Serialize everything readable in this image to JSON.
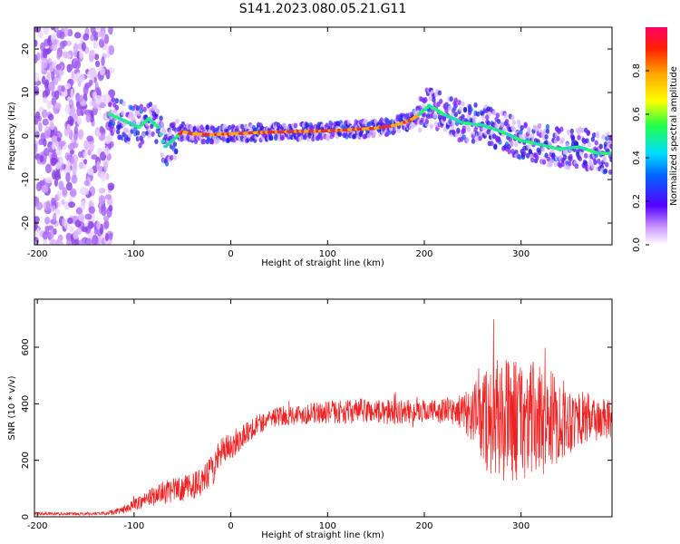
{
  "title": "S141.2023.080.05.21.G11",
  "colors": {
    "ridge": "#e03030",
    "snr_line": "#ee2222",
    "axis": "#000000"
  },
  "chart_data": [
    {
      "type": "heatmap",
      "xlabel": "Height of straight line (km)",
      "ylabel": "Frequency (Hz)",
      "xlim": [
        -203,
        394
      ],
      "ylim": [
        -25,
        25
      ],
      "xticks": [
        -200,
        -100,
        0,
        100,
        200,
        300
      ],
      "yticks": [
        -20,
        -10,
        0,
        10,
        20
      ],
      "colorbar": {
        "label": "Normalized spectral amplitude",
        "range": [
          0,
          1
        ],
        "ticks": [
          0.0,
          0.2,
          0.4,
          0.6,
          0.8
        ]
      },
      "ridge": {
        "x": [
          -125,
          -110,
          -95,
          -85,
          -75,
          -68,
          -60,
          -50,
          -40,
          -20,
          0,
          30,
          60,
          90,
          120,
          150,
          170,
          185,
          195,
          205,
          220,
          240,
          260,
          280,
          300,
          320,
          340,
          360,
          380,
          394
        ],
        "y": [
          5,
          3.5,
          2,
          4,
          2,
          -2.5,
          -1,
          1,
          0.5,
          0.3,
          0.5,
          0.8,
          1.0,
          1.1,
          1.4,
          1.8,
          2.5,
          3.5,
          5,
          7,
          5,
          3,
          2.5,
          1,
          -1,
          -2,
          -3,
          -2.5,
          -4,
          -4
        ]
      }
    },
    {
      "type": "line",
      "xlabel": "Height of straight line (km)",
      "ylabel": "SNR (10 * v/v)",
      "xlim": [
        -203,
        394
      ],
      "ylim": [
        0,
        770
      ],
      "xticks": [
        -200,
        -100,
        0,
        100,
        200,
        300
      ],
      "yticks": [
        0,
        200,
        400,
        600
      ],
      "envelope": {
        "x": [
          -203,
          -160,
          -130,
          -110,
          -90,
          -70,
          -50,
          -30,
          -20,
          -10,
          0,
          20,
          40,
          60,
          80,
          100,
          120,
          140,
          160,
          180,
          200,
          220,
          240,
          255,
          265,
          280,
          300,
          320,
          340,
          360,
          380,
          394
        ],
        "mean": [
          12,
          10,
          12,
          25,
          60,
          85,
          100,
          120,
          160,
          225,
          250,
          310,
          350,
          360,
          365,
          370,
          372,
          375,
          370,
          372,
          375,
          375,
          372,
          360,
          350,
          345,
          345,
          340,
          345,
          350,
          345,
          340
        ],
        "noise": [
          6,
          5,
          6,
          14,
          28,
          40,
          45,
          50,
          60,
          55,
          50,
          40,
          35,
          35,
          38,
          40,
          42,
          45,
          45,
          42,
          40,
          45,
          60,
          130,
          200,
          220,
          220,
          200,
          150,
          100,
          80,
          70
        ]
      }
    }
  ]
}
